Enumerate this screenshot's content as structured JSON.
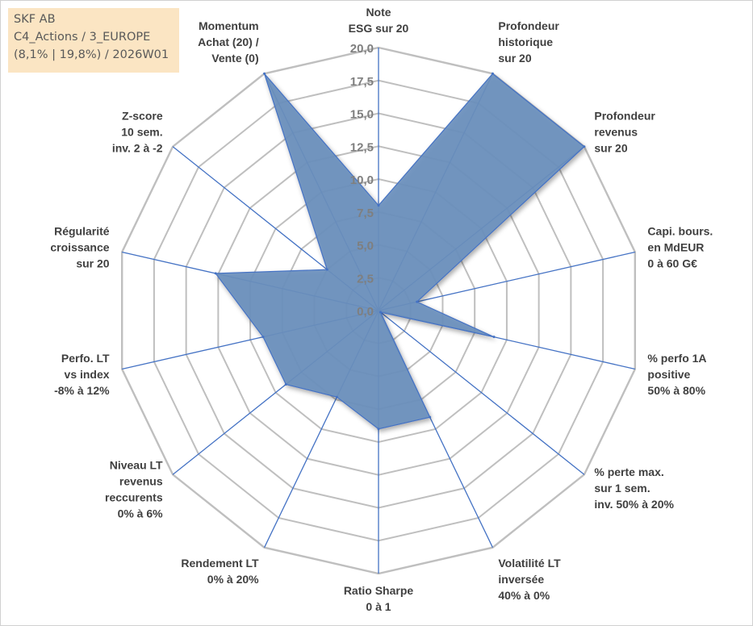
{
  "info": {
    "line1": "SKF AB",
    "line2": "C4_Actions / 3_EUROPE",
    "line3": "(8,1% | 19,8%) / 2026W01"
  },
  "chart_data": {
    "type": "radar",
    "title": "",
    "rmax": 20,
    "rings": 8,
    "tick_labels": [
      "0,0",
      "2,5",
      "5,0",
      "7,5",
      "10,0",
      "12,5",
      "15,0",
      "17,5",
      "20,0"
    ],
    "axes": [
      [
        "Note",
        "ESG sur 20"
      ],
      [
        "Profondeur",
        "historique",
        "sur 20"
      ],
      [
        "Profondeur",
        "revenus",
        "sur 20"
      ],
      [
        "Capi. bours.",
        "en MdEUR",
        "0 à 60 G€"
      ],
      [
        "% perfo 1A",
        "positive",
        "50% à 80%"
      ],
      [
        "% perte max.",
        "sur 1 sem.",
        "inv. 50% à 20%"
      ],
      [
        "Volatilité LT",
        "inversée",
        "40% à 0%"
      ],
      [
        "Ratio Sharpe",
        "0 à 1"
      ],
      [
        "Rendement LT",
        "0% à 20%"
      ],
      [
        "Niveau LT",
        "revenus",
        "reccurents",
        "0% à 6%"
      ],
      [
        "Perfo. LT",
        "vs index",
        "-8% à 12%"
      ],
      [
        "Régularité",
        "croissance",
        "sur 20"
      ],
      [
        "Z-score",
        "10 sem.",
        "inv. 2 à -2"
      ],
      [
        "Momentum",
        "Achat (20) /",
        "Vente (0)"
      ]
    ],
    "values": [
      8.0,
      20.0,
      20.0,
      3.0,
      9.0,
      0.2,
      9.0,
      9.0,
      7.3,
      9.0,
      9.0,
      12.7,
      5.0,
      20.0
    ],
    "colors": {
      "fill": "#6a8fbd",
      "line": "#4472c4",
      "grid": "#bfbfbf",
      "axis": "#4472c4"
    }
  }
}
